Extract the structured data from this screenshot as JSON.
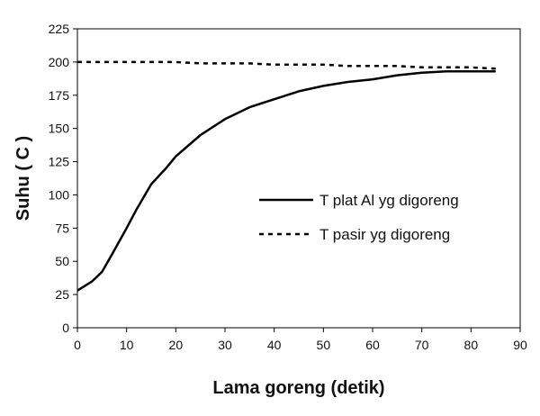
{
  "chart_data": {
    "type": "line",
    "title": "",
    "xlabel": "Lama goreng (detik)",
    "ylabel": "Suhu ( C )",
    "xlim": [
      0,
      90
    ],
    "ylim": [
      0,
      225
    ],
    "xticks": [
      0,
      10,
      20,
      30,
      40,
      50,
      60,
      70,
      80,
      90
    ],
    "yticks": [
      0,
      25,
      50,
      75,
      100,
      125,
      150,
      175,
      200,
      225
    ],
    "grid": false,
    "legend_position": "right-middle",
    "series": [
      {
        "name": "T plat Al yg digoreng",
        "style": "solid",
        "color": "#000000",
        "x": [
          0,
          3,
          5,
          7,
          10,
          12,
          15,
          18,
          20,
          25,
          30,
          35,
          40,
          45,
          50,
          55,
          60,
          65,
          70,
          75,
          80,
          85
        ],
        "y": [
          28,
          35,
          42,
          55,
          75,
          89,
          108,
          120,
          129,
          145,
          157,
          166,
          172,
          178,
          182,
          185,
          187,
          190,
          192,
          193,
          193,
          193
        ]
      },
      {
        "name": "T pasir yg digoreng",
        "style": "dashed",
        "color": "#000000",
        "x": [
          0,
          5,
          10,
          15,
          20,
          25,
          30,
          35,
          40,
          45,
          50,
          55,
          60,
          65,
          70,
          75,
          80,
          85
        ],
        "y": [
          200,
          200,
          200,
          200,
          200,
          199,
          199,
          199,
          198,
          198,
          198,
          197,
          197,
          197,
          196,
          196,
          196,
          195
        ]
      }
    ]
  }
}
